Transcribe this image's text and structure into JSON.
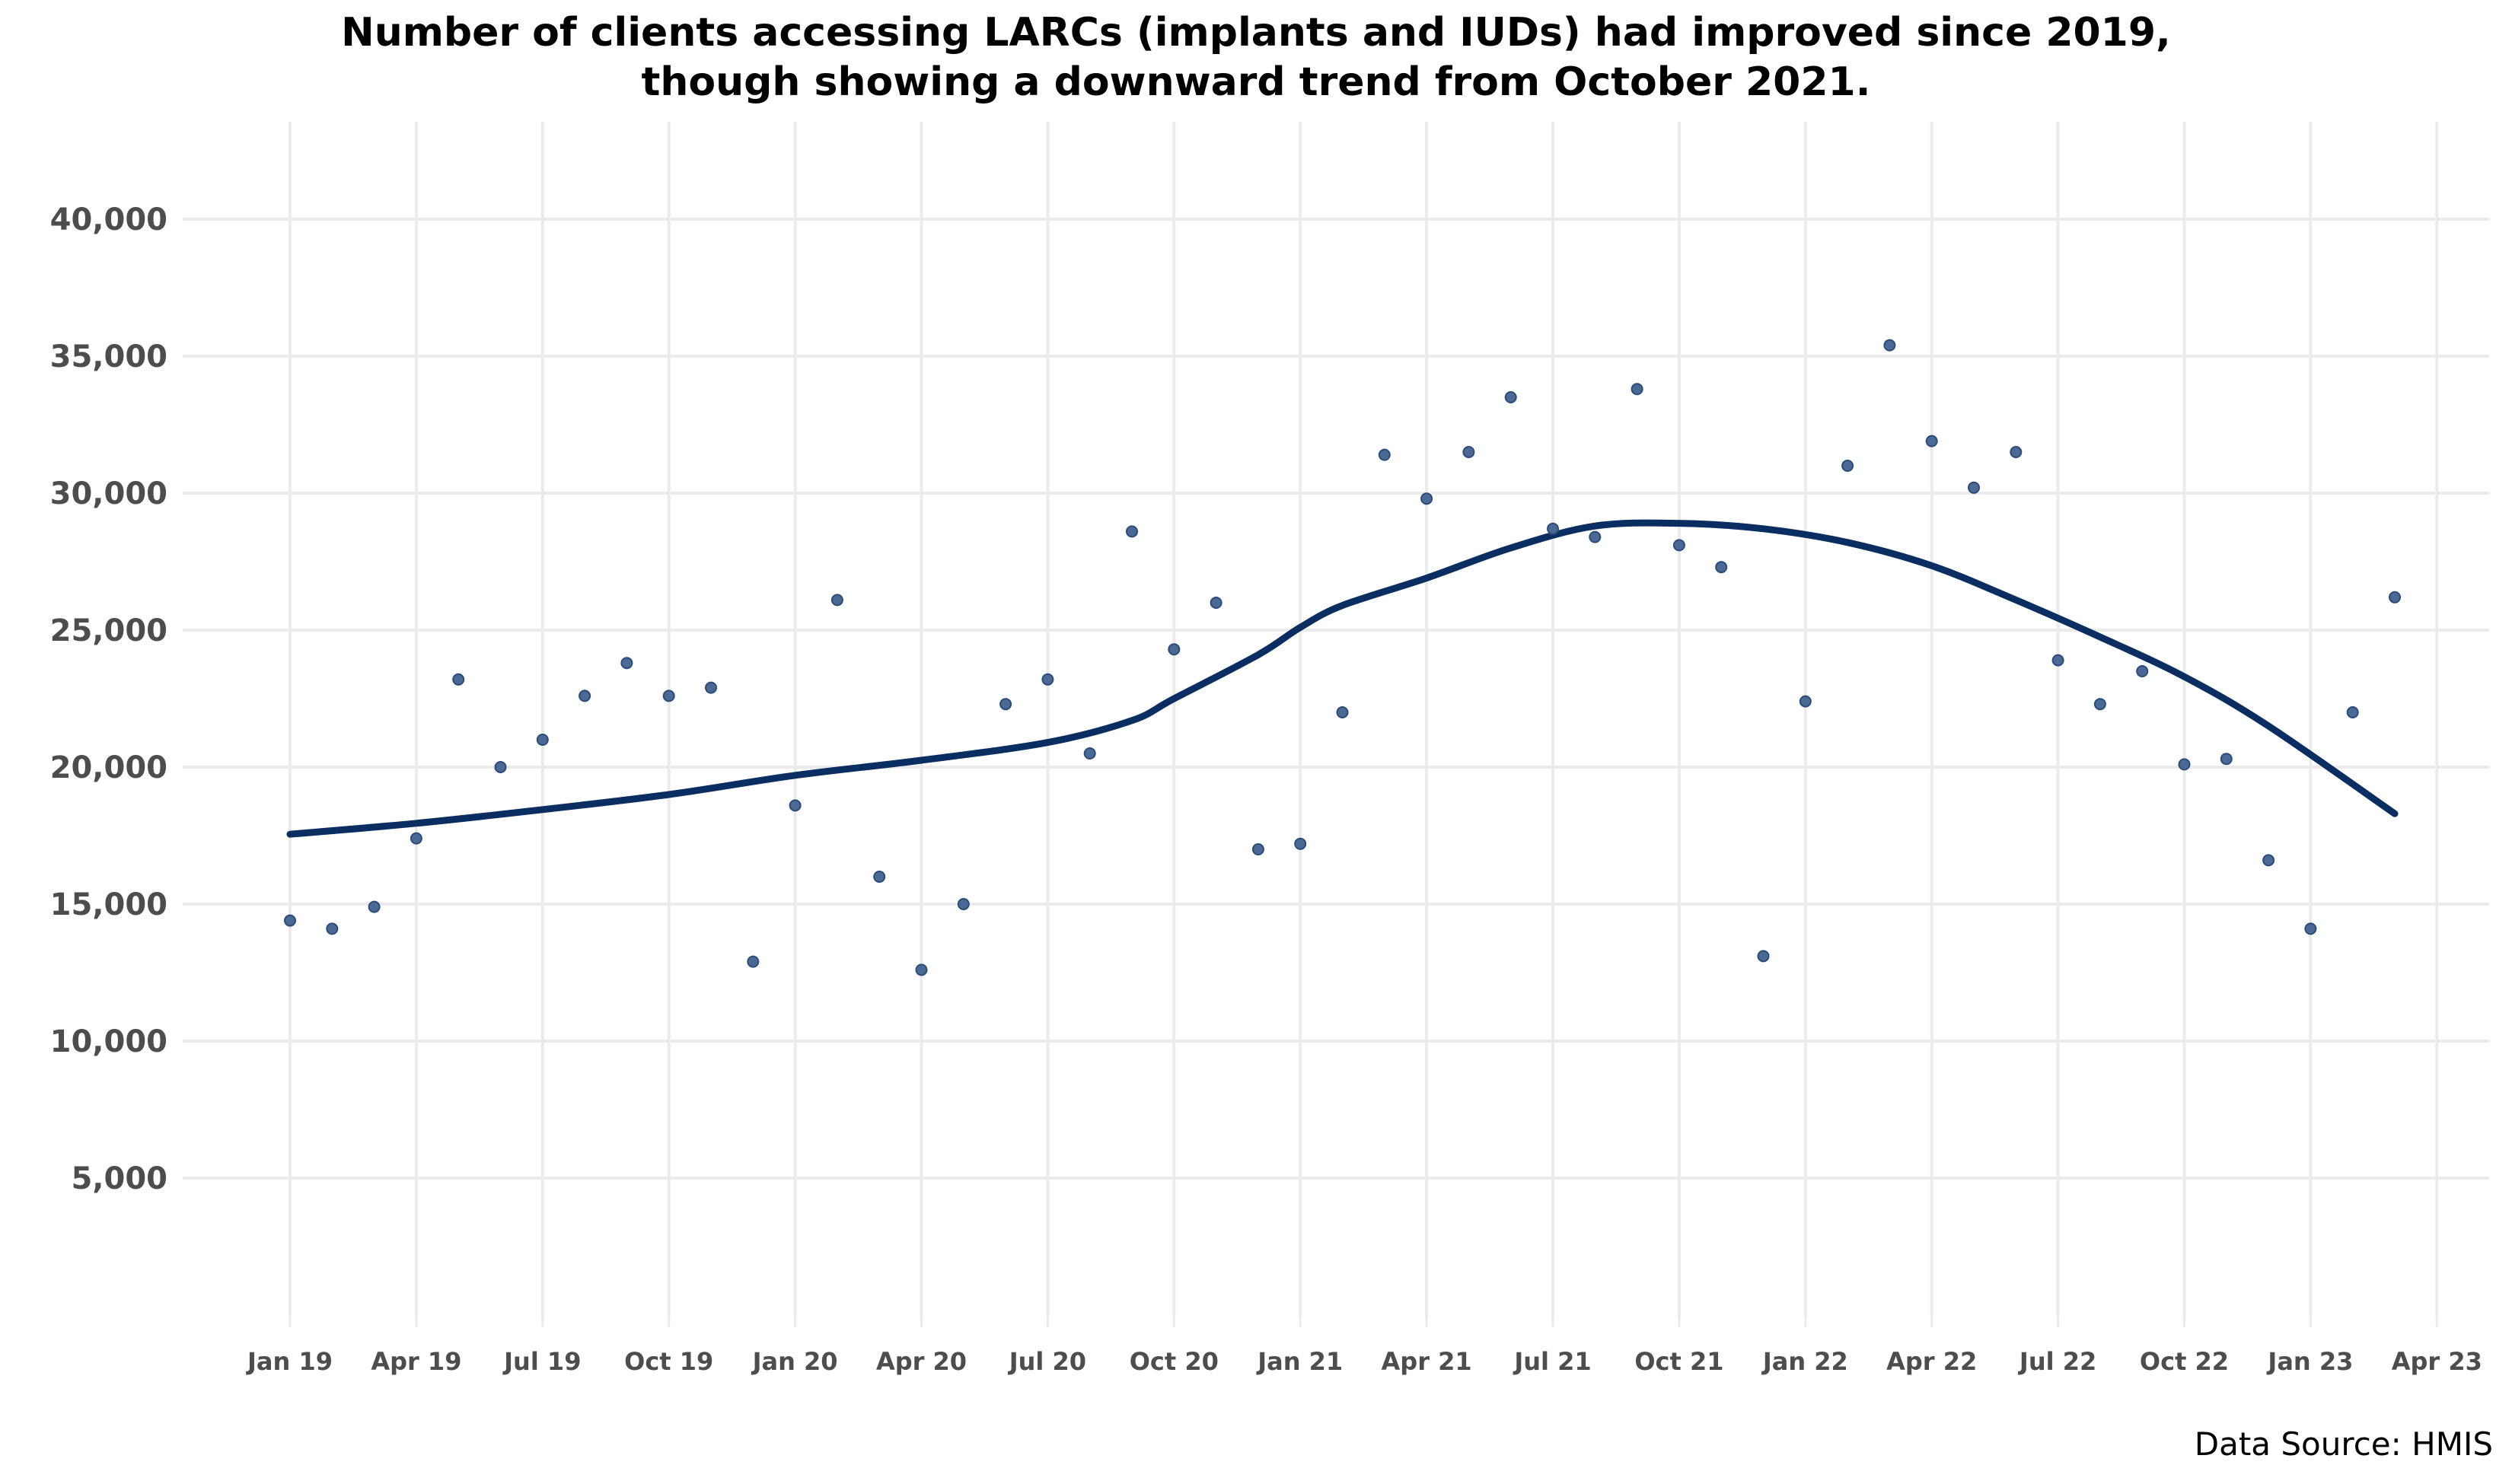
{
  "chart_data": {
    "type": "scatter",
    "title": "Number of clients accessing LARCs (implants and IUDs) had improved since 2019,",
    "subtitle": "though showing a downward trend from October 2021.",
    "caption": "Data Source: HMIS",
    "xlabel": "",
    "ylabel": "",
    "ylim": [
      0,
      41000
    ],
    "y_ticks": [
      5000,
      10000,
      15000,
      20000,
      25000,
      30000,
      35000,
      40000
    ],
    "y_tick_labels": [
      "5,000",
      "10,000",
      "15,000",
      "20,000",
      "25,000",
      "30,000",
      "35,000",
      "40,000"
    ],
    "x_ticks": [
      "2019-01",
      "2019-04",
      "2019-07",
      "2019-10",
      "2020-01",
      "2020-04",
      "2020-07",
      "2020-10",
      "2021-01",
      "2021-04",
      "2021-07",
      "2021-10",
      "2022-01",
      "2022-04",
      "2022-07",
      "2022-10",
      "2023-01",
      "2023-04"
    ],
    "x_tick_labels": [
      "Jan 19",
      "Apr 19",
      "Jul 19",
      "Oct 19",
      "Jan 20",
      "Apr 20",
      "Jul 20",
      "Oct 20",
      "Jan 21",
      "Apr 21",
      "Jul 21",
      "Oct 21",
      "Jan 22",
      "Apr 22",
      "Jul 22",
      "Oct 22",
      "Jan 23",
      "Apr 23"
    ],
    "grid": true,
    "legend": "none",
    "point_color": "#4a6a95",
    "point_edge_color": "#2c4b78",
    "trend_color": "#0a2d62",
    "series": [
      {
        "type": "scatter",
        "x": [
          "2019-01",
          "2019-02",
          "2019-03",
          "2019-04",
          "2019-05",
          "2019-06",
          "2019-07",
          "2019-08",
          "2019-09",
          "2019-10",
          "2019-11",
          "2019-12",
          "2020-01",
          "2020-02",
          "2020-03",
          "2020-04",
          "2020-05",
          "2020-06",
          "2020-07",
          "2020-08",
          "2020-09",
          "2020-10",
          "2020-11",
          "2020-12",
          "2021-01",
          "2021-02",
          "2021-03",
          "2021-04",
          "2021-05",
          "2021-06",
          "2021-07",
          "2021-08",
          "2021-09",
          "2021-10",
          "2021-11",
          "2021-12",
          "2022-01",
          "2022-02",
          "2022-03",
          "2022-04",
          "2022-05",
          "2022-06",
          "2022-07",
          "2022-08",
          "2022-09",
          "2022-10",
          "2022-11",
          "2022-12",
          "2023-01",
          "2023-02",
          "2023-03"
        ],
        "y": [
          14400,
          14100,
          14900,
          17400,
          23200,
          20000,
          21000,
          22600,
          23800,
          22600,
          22900,
          12900,
          18600,
          26100,
          16000,
          12600,
          15000,
          22300,
          23200,
          20500,
          28600,
          24300,
          26000,
          17000,
          17200,
          22000,
          31400,
          29800,
          31500,
          33500,
          28700,
          28400,
          33800,
          28100,
          27300,
          13100,
          22400,
          31000,
          35400,
          31900,
          30200,
          31500,
          23900,
          22300,
          23500,
          20100,
          20300,
          16600,
          14100,
          22000,
          26200
        ]
      },
      {
        "type": "line",
        "x": [
          "2019-01",
          "2019-04",
          "2019-07",
          "2019-10",
          "2020-01",
          "2020-04",
          "2020-07",
          "2020-09",
          "2020-10",
          "2020-12",
          "2021-01",
          "2021-02",
          "2021-04",
          "2021-06",
          "2021-08",
          "2021-10",
          "2021-12",
          "2022-02",
          "2022-04",
          "2022-06",
          "2022-08",
          "2022-10",
          "2022-12",
          "2023-03"
        ],
        "y": [
          17550,
          17950,
          18450,
          19000,
          19700,
          20250,
          20900,
          21700,
          22500,
          24100,
          25100,
          25900,
          26900,
          28000,
          28800,
          28900,
          28700,
          28200,
          27350,
          26100,
          24750,
          23300,
          21500,
          18300
        ]
      }
    ]
  }
}
